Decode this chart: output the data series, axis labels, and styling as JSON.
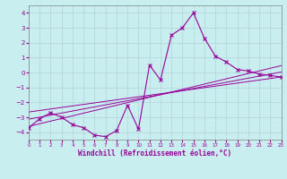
{
  "xlabel": "Windchill (Refroidissement éolien,°C)",
  "bg_color": "#c8eef0",
  "grid_color": "#b0d4d8",
  "line_color": "#990099",
  "spine_color": "#808080",
  "xlim": [
    0,
    23
  ],
  "ylim": [
    -4.5,
    4.5
  ],
  "xticks": [
    0,
    1,
    2,
    3,
    4,
    5,
    6,
    7,
    8,
    9,
    10,
    11,
    12,
    13,
    14,
    15,
    16,
    17,
    18,
    19,
    20,
    21,
    22,
    23
  ],
  "yticks": [
    -4,
    -3,
    -2,
    -1,
    0,
    1,
    2,
    3,
    4
  ],
  "x_main": [
    0,
    1,
    2,
    3,
    4,
    5,
    6,
    7,
    8,
    9,
    10,
    11,
    12,
    13,
    14,
    15,
    16,
    17,
    18,
    19,
    20,
    21,
    22,
    23
  ],
  "y_main": [
    -3.7,
    -3.1,
    -2.7,
    -3.0,
    -3.5,
    -3.7,
    -4.2,
    -4.3,
    -3.9,
    -2.2,
    -3.8,
    0.5,
    -0.5,
    2.5,
    3.0,
    4.0,
    2.3,
    1.1,
    0.7,
    0.2,
    0.1,
    -0.1,
    -0.2,
    -0.3
  ],
  "trend_lines": [
    [
      [
        -0.5,
        23.5
      ],
      [
        -3.7,
        0.55
      ]
    ],
    [
      [
        -0.5,
        23.5
      ],
      [
        -3.2,
        0.1
      ]
    ],
    [
      [
        -0.5,
        23.5
      ],
      [
        -2.7,
        -0.25
      ]
    ]
  ]
}
